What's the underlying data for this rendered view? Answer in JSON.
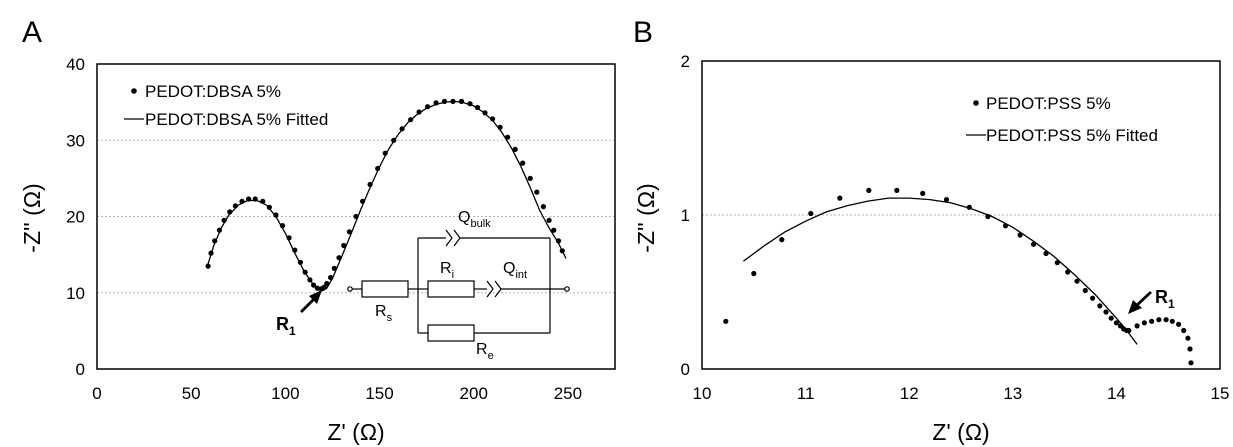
{
  "figure": {
    "panel_a_letter": "A",
    "panel_b_letter": "B"
  },
  "chart_data": [
    {
      "type": "scatter",
      "panel": "A",
      "xlabel": "Z' (Ω)",
      "ylabel": "-Z'' (Ω)",
      "xlim": [
        0,
        275
      ],
      "ylim": [
        0,
        40
      ],
      "x_ticks": [
        0,
        50,
        100,
        150,
        200,
        250
      ],
      "y_ticks": [
        0,
        10,
        20,
        30,
        40
      ],
      "grid": "horizontal-dotted",
      "legend_position": "top-left",
      "series": [
        {
          "name": "PEDOT:DBSA 5%",
          "style": "markers",
          "x": [
            59,
            60.5,
            62.5,
            65,
            67.5,
            70.5,
            73.5,
            77,
            80.5,
            84,
            88,
            91.5,
            95,
            98.5,
            102,
            105,
            108,
            110.5,
            113,
            115,
            117,
            119,
            120.5,
            122,
            124,
            126,
            128.5,
            131,
            134,
            137.5,
            141,
            145,
            149,
            153,
            157.5,
            162,
            166.5,
            171,
            175.5,
            180,
            184.5,
            189,
            193.5,
            198,
            202,
            206,
            210,
            214,
            218,
            222,
            226,
            230,
            233.5,
            237,
            240,
            242.5,
            245,
            247
          ],
          "y": [
            13.5,
            15.2,
            16.8,
            18.2,
            19.5,
            20.6,
            21.4,
            22.0,
            22.3,
            22.3,
            22.0,
            21.2,
            20.2,
            18.8,
            17.2,
            15.6,
            14.0,
            12.7,
            11.7,
            11.0,
            10.6,
            10.5,
            10.7,
            11.2,
            12.0,
            13.2,
            14.6,
            16.2,
            18.0,
            20.0,
            22.0,
            24.2,
            26.3,
            28.3,
            30.0,
            31.5,
            32.7,
            33.7,
            34.4,
            34.9,
            35.1,
            35.1,
            35.1,
            34.8,
            34.3,
            33.6,
            32.8,
            31.7,
            30.4,
            28.8,
            27.0,
            25.0,
            23.2,
            21.3,
            19.5,
            18.2,
            16.8,
            15.5
          ]
        },
        {
          "name": "PEDOT:DBSA 5% Fitted",
          "style": "line",
          "x": [
            59,
            62,
            66,
            70,
            75,
            80,
            85,
            90,
            95,
            100,
            105,
            110,
            115,
            118,
            120,
            122,
            125,
            130,
            135,
            140,
            145,
            150,
            155,
            160,
            165,
            170,
            175,
            180,
            185,
            190,
            195,
            200,
            205,
            210,
            215,
            220,
            225,
            230,
            235,
            240,
            245,
            249
          ],
          "y": [
            13.8,
            16.2,
            18.5,
            20.2,
            21.5,
            22.1,
            22.1,
            21.5,
            20.0,
            17.8,
            15.2,
            12.8,
            11.0,
            10.4,
            10.3,
            10.6,
            11.9,
            14.8,
            17.8,
            20.9,
            23.8,
            26.5,
            28.9,
            30.8,
            32.3,
            33.4,
            34.2,
            34.7,
            35.0,
            35.1,
            34.9,
            34.5,
            33.7,
            32.6,
            31.0,
            29.0,
            26.6,
            23.8,
            20.8,
            18.5,
            16.5,
            14.5
          ]
        }
      ],
      "annotations": {
        "r1_main": "R",
        "r1_sub": "1"
      },
      "circuit": {
        "q_bulk_main": "Q",
        "q_bulk_sub": "bulk",
        "r_i_main": "R",
        "r_i_sub": "i",
        "q_int_main": "Q",
        "q_int_sub": "int",
        "r_s_main": "R",
        "r_s_sub": "s",
        "r_e_main": "R",
        "r_e_sub": "e"
      }
    },
    {
      "type": "scatter",
      "panel": "B",
      "xlabel": "Z' (Ω)",
      "ylabel": "-Z'' (Ω)",
      "xlim": [
        10,
        15
      ],
      "ylim": [
        0,
        2
      ],
      "x_ticks": [
        10,
        11,
        12,
        13,
        14,
        15
      ],
      "y_ticks": [
        0,
        1,
        2
      ],
      "grid": "horizontal-dotted",
      "legend_position": "top-right",
      "series": [
        {
          "name": "PEDOT:PSS 5%",
          "style": "markers",
          "x": [
            10.23,
            10.5,
            10.77,
            11.05,
            11.33,
            11.61,
            11.88,
            12.13,
            12.36,
            12.58,
            12.76,
            12.93,
            13.07,
            13.2,
            13.32,
            13.43,
            13.53,
            13.62,
            13.7,
            13.77,
            13.84,
            13.9,
            13.95,
            14.0,
            14.04,
            14.07,
            14.1,
            14.12,
            14.2,
            14.27,
            14.34,
            14.41,
            14.48,
            14.54,
            14.6,
            14.65,
            14.69,
            14.71,
            14.72
          ],
          "y": [
            0.31,
            0.62,
            0.84,
            1.01,
            1.11,
            1.16,
            1.16,
            1.14,
            1.1,
            1.05,
            0.99,
            0.93,
            0.87,
            0.81,
            0.75,
            0.69,
            0.63,
            0.57,
            0.51,
            0.46,
            0.41,
            0.37,
            0.33,
            0.3,
            0.28,
            0.26,
            0.25,
            0.25,
            0.28,
            0.3,
            0.31,
            0.32,
            0.32,
            0.31,
            0.29,
            0.25,
            0.2,
            0.13,
            0.04
          ]
        },
        {
          "name": "PEDOT:PSS 5% Fitted",
          "style": "line",
          "x": [
            10.4,
            10.6,
            10.8,
            11.0,
            11.2,
            11.4,
            11.6,
            11.8,
            12.0,
            12.2,
            12.4,
            12.6,
            12.8,
            13.0,
            13.2,
            13.4,
            13.6,
            13.8,
            14.0,
            14.1,
            14.2
          ],
          "y": [
            0.7,
            0.8,
            0.89,
            0.96,
            1.02,
            1.06,
            1.09,
            1.11,
            1.11,
            1.1,
            1.08,
            1.04,
            0.99,
            0.92,
            0.83,
            0.73,
            0.61,
            0.48,
            0.33,
            0.25,
            0.16
          ]
        }
      ],
      "annotations": {
        "r1_main": "R",
        "r1_sub": "1"
      }
    }
  ]
}
